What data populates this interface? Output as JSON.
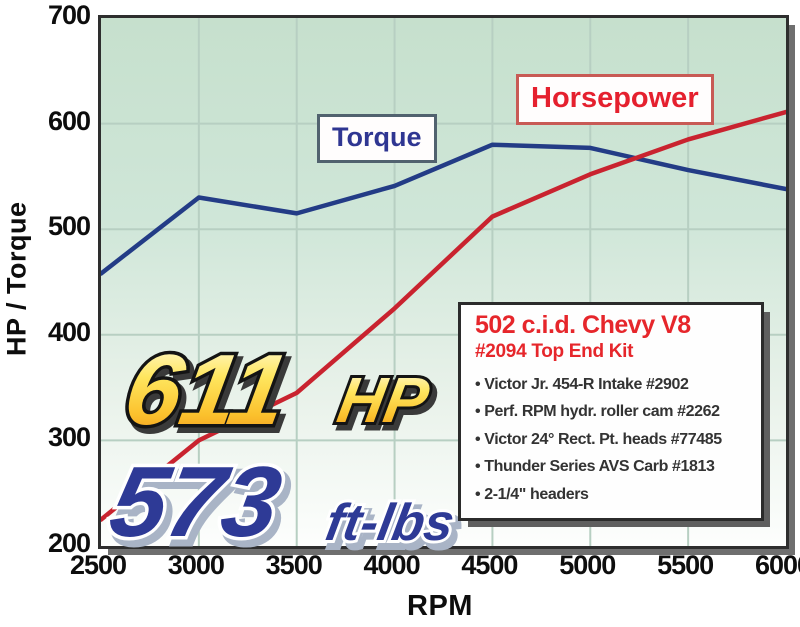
{
  "figure": {
    "callouts": {
      "hp_value": "611",
      "hp_unit": "HP",
      "tq_value": "573",
      "tq_unit": "ft-lbs"
    },
    "spec_box": {
      "title": "502 c.i.d. Chevy V8",
      "subtitle": "#2094 Top End Kit",
      "bullets": [
        "Victor Jr. 454-R Intake #2902",
        "Perf. RPM hydr. roller cam #2262",
        "Victor 24° Rect. Pt. heads #77485",
        "Thunder Series AVS Carb #1813",
        "2-1/4\" headers"
      ]
    },
    "colors": {
      "torque_line": "#233c86",
      "horsepower_line": "#c9232f",
      "grid": "#b7cfc2",
      "plot_bg_top": "#c9e2d1",
      "plot_bg_bottom": "#ffffff",
      "gold_accent": "#f9b427",
      "callout_blue": "#2e3a96",
      "spec_red": "#e6262b"
    }
  },
  "chart_data": {
    "type": "line",
    "title": "",
    "xlabel": "RPM",
    "ylabel": "HP / Torque",
    "x": [
      2500,
      3000,
      3500,
      4000,
      4500,
      5000,
      5500,
      6000
    ],
    "xlim": [
      2500,
      6000
    ],
    "ylim": [
      200,
      700
    ],
    "yticks": [
      200,
      300,
      400,
      500,
      600,
      700
    ],
    "grid": true,
    "legend_position": "inside-top",
    "series": [
      {
        "name": "Torque",
        "color": "#233c86",
        "values": [
          458,
          530,
          515,
          541,
          580,
          577,
          556,
          538
        ]
      },
      {
        "name": "Horsepower",
        "color": "#c9232f",
        "values": [
          225,
          300,
          345,
          425,
          512,
          552,
          585,
          611
        ]
      }
    ]
  }
}
